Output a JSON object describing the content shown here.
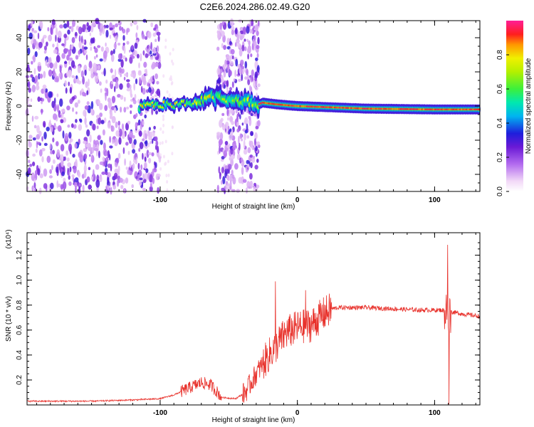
{
  "title": "C2E6.2024.286.02.49.G20",
  "chart_data": [
    {
      "type": "heatmap",
      "xlabel": "Height of straight line (km)",
      "ylabel": "Frequency (Hz)",
      "xlim": [
        -197,
        133
      ],
      "ylim": [
        -50,
        50
      ],
      "xticks": [
        -100,
        0,
        100
      ],
      "xtick_labels": [
        "-100",
        "0",
        "100"
      ],
      "yticks": [
        -40,
        -20,
        0,
        20,
        40
      ],
      "ytick_labels": [
        "-40",
        "-20",
        "0",
        "20",
        "40"
      ],
      "colorbar": {
        "label": "Normalized spectral amplitude",
        "range": [
          0,
          1
        ],
        "ticks": [
          0.0,
          0.2,
          0.4,
          0.6,
          0.8
        ],
        "tick_labels": [
          "0.0",
          "0.2",
          "0.4",
          "0.6",
          "0.8"
        ]
      },
      "features": {
        "noise_region_1": [
          -197,
          -100
        ],
        "quiet_region": [
          -100,
          -58
        ],
        "noise_region_2": [
          -58,
          -28
        ],
        "signal_ridge": {
          "points": [
            [
              -115,
              0
            ],
            [
              -100,
              0.5
            ],
            [
              -80,
              1.5
            ],
            [
              -65,
              4
            ],
            [
              -60,
              5
            ],
            [
              -28,
              1
            ],
            [
              -25,
              2
            ],
            [
              -15,
              1
            ],
            [
              0,
              0
            ],
            [
              50,
              -1.5
            ],
            [
              100,
              -2
            ],
            [
              133,
              -2
            ]
          ],
          "peak_amplitude": 1.0
        }
      }
    },
    {
      "type": "line",
      "xlabel": "Height of straight line (km)",
      "ylabel": "SNR (10 * v/v)",
      "y_multiplier": "(x10⁴)",
      "xlim": [
        -197,
        133
      ],
      "ylim": [
        0,
        1.38
      ],
      "xticks": [
        -100,
        0,
        100
      ],
      "xtick_labels": [
        "-100",
        "0",
        "100"
      ],
      "yticks": [
        0.2,
        0.4,
        0.6,
        0.8,
        1.0,
        1.2
      ],
      "ytick_labels": [
        "0.2",
        "0.4",
        "0.6",
        "0.8",
        "1.0",
        "1.2"
      ],
      "series": [
        {
          "color": "#e8322c",
          "envelope": [
            [
              -197,
              0.03
            ],
            [
              -150,
              0.03
            ],
            [
              -120,
              0.04
            ],
            [
              -100,
              0.05
            ],
            [
              -90,
              0.08
            ],
            [
              -80,
              0.13
            ],
            [
              -70,
              0.18
            ],
            [
              -63,
              0.16
            ],
            [
              -55,
              0.06
            ],
            [
              -45,
              0.05
            ],
            [
              -38,
              0.1
            ],
            [
              -30,
              0.25
            ],
            [
              -22,
              0.38
            ],
            [
              -15,
              0.48
            ],
            [
              -8,
              0.58
            ],
            [
              0,
              0.62
            ],
            [
              10,
              0.64
            ],
            [
              18,
              0.72
            ],
            [
              25,
              0.77
            ],
            [
              30,
              0.78
            ],
            [
              50,
              0.78
            ],
            [
              70,
              0.77
            ],
            [
              90,
              0.76
            ],
            [
              105,
              0.76
            ],
            [
              110,
              0.75
            ],
            [
              120,
              0.73
            ],
            [
              133,
              0.71
            ]
          ],
          "spikes": [
            [
              -16,
              0.99
            ],
            [
              6,
              0.92
            ],
            [
              109.5,
              1.36
            ],
            [
              110.5,
              0.02
            ]
          ]
        }
      ]
    }
  ]
}
